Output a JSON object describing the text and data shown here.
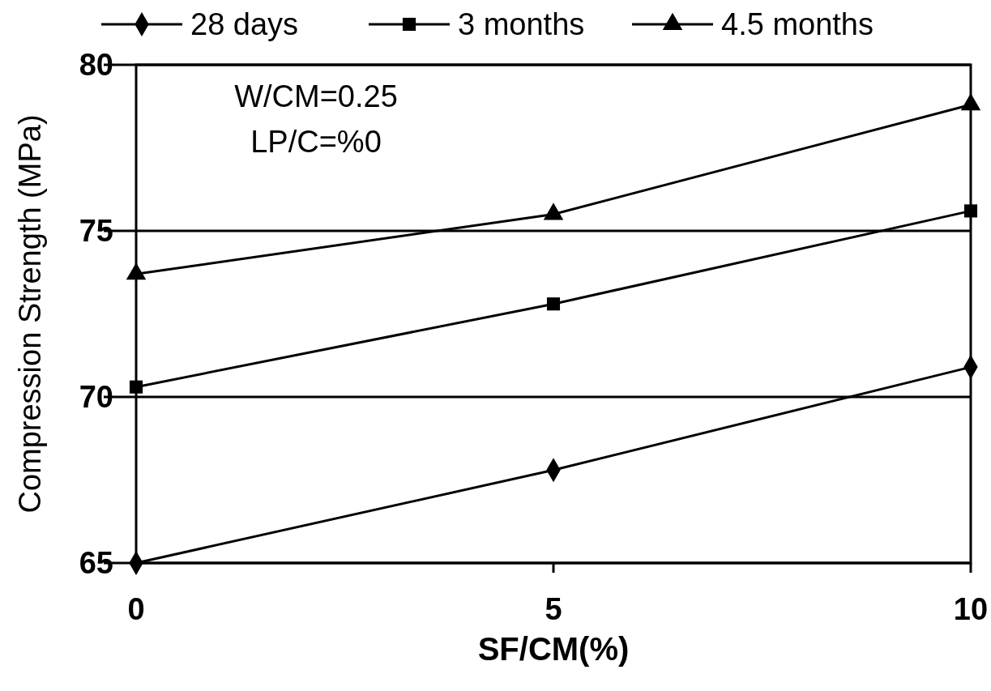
{
  "chart_data": {
    "type": "line",
    "xlabel": "SF/CM(%)",
    "ylabel": "Compression Strength (MPa)",
    "x": [
      0,
      5,
      10
    ],
    "xlim": [
      0,
      10
    ],
    "xticks": [
      0,
      5,
      10
    ],
    "ylim": [
      65,
      80
    ],
    "yticks": [
      65,
      70,
      75,
      80
    ],
    "grid": "y",
    "legend": "top",
    "line_style": "solid",
    "annotations": [
      "W/CM=0.25",
      "LP/C=%0"
    ],
    "series": [
      {
        "name": "28 days",
        "color": "#000000",
        "marker": "diamond",
        "values": [
          65.0,
          67.8,
          70.9
        ]
      },
      {
        "name": "3 months",
        "color": "#000000",
        "marker": "square",
        "values": [
          70.3,
          72.8,
          75.6
        ]
      },
      {
        "name": "4.5 months",
        "color": "#000000",
        "marker": "triangle",
        "values": [
          73.7,
          75.5,
          78.8
        ]
      }
    ]
  }
}
